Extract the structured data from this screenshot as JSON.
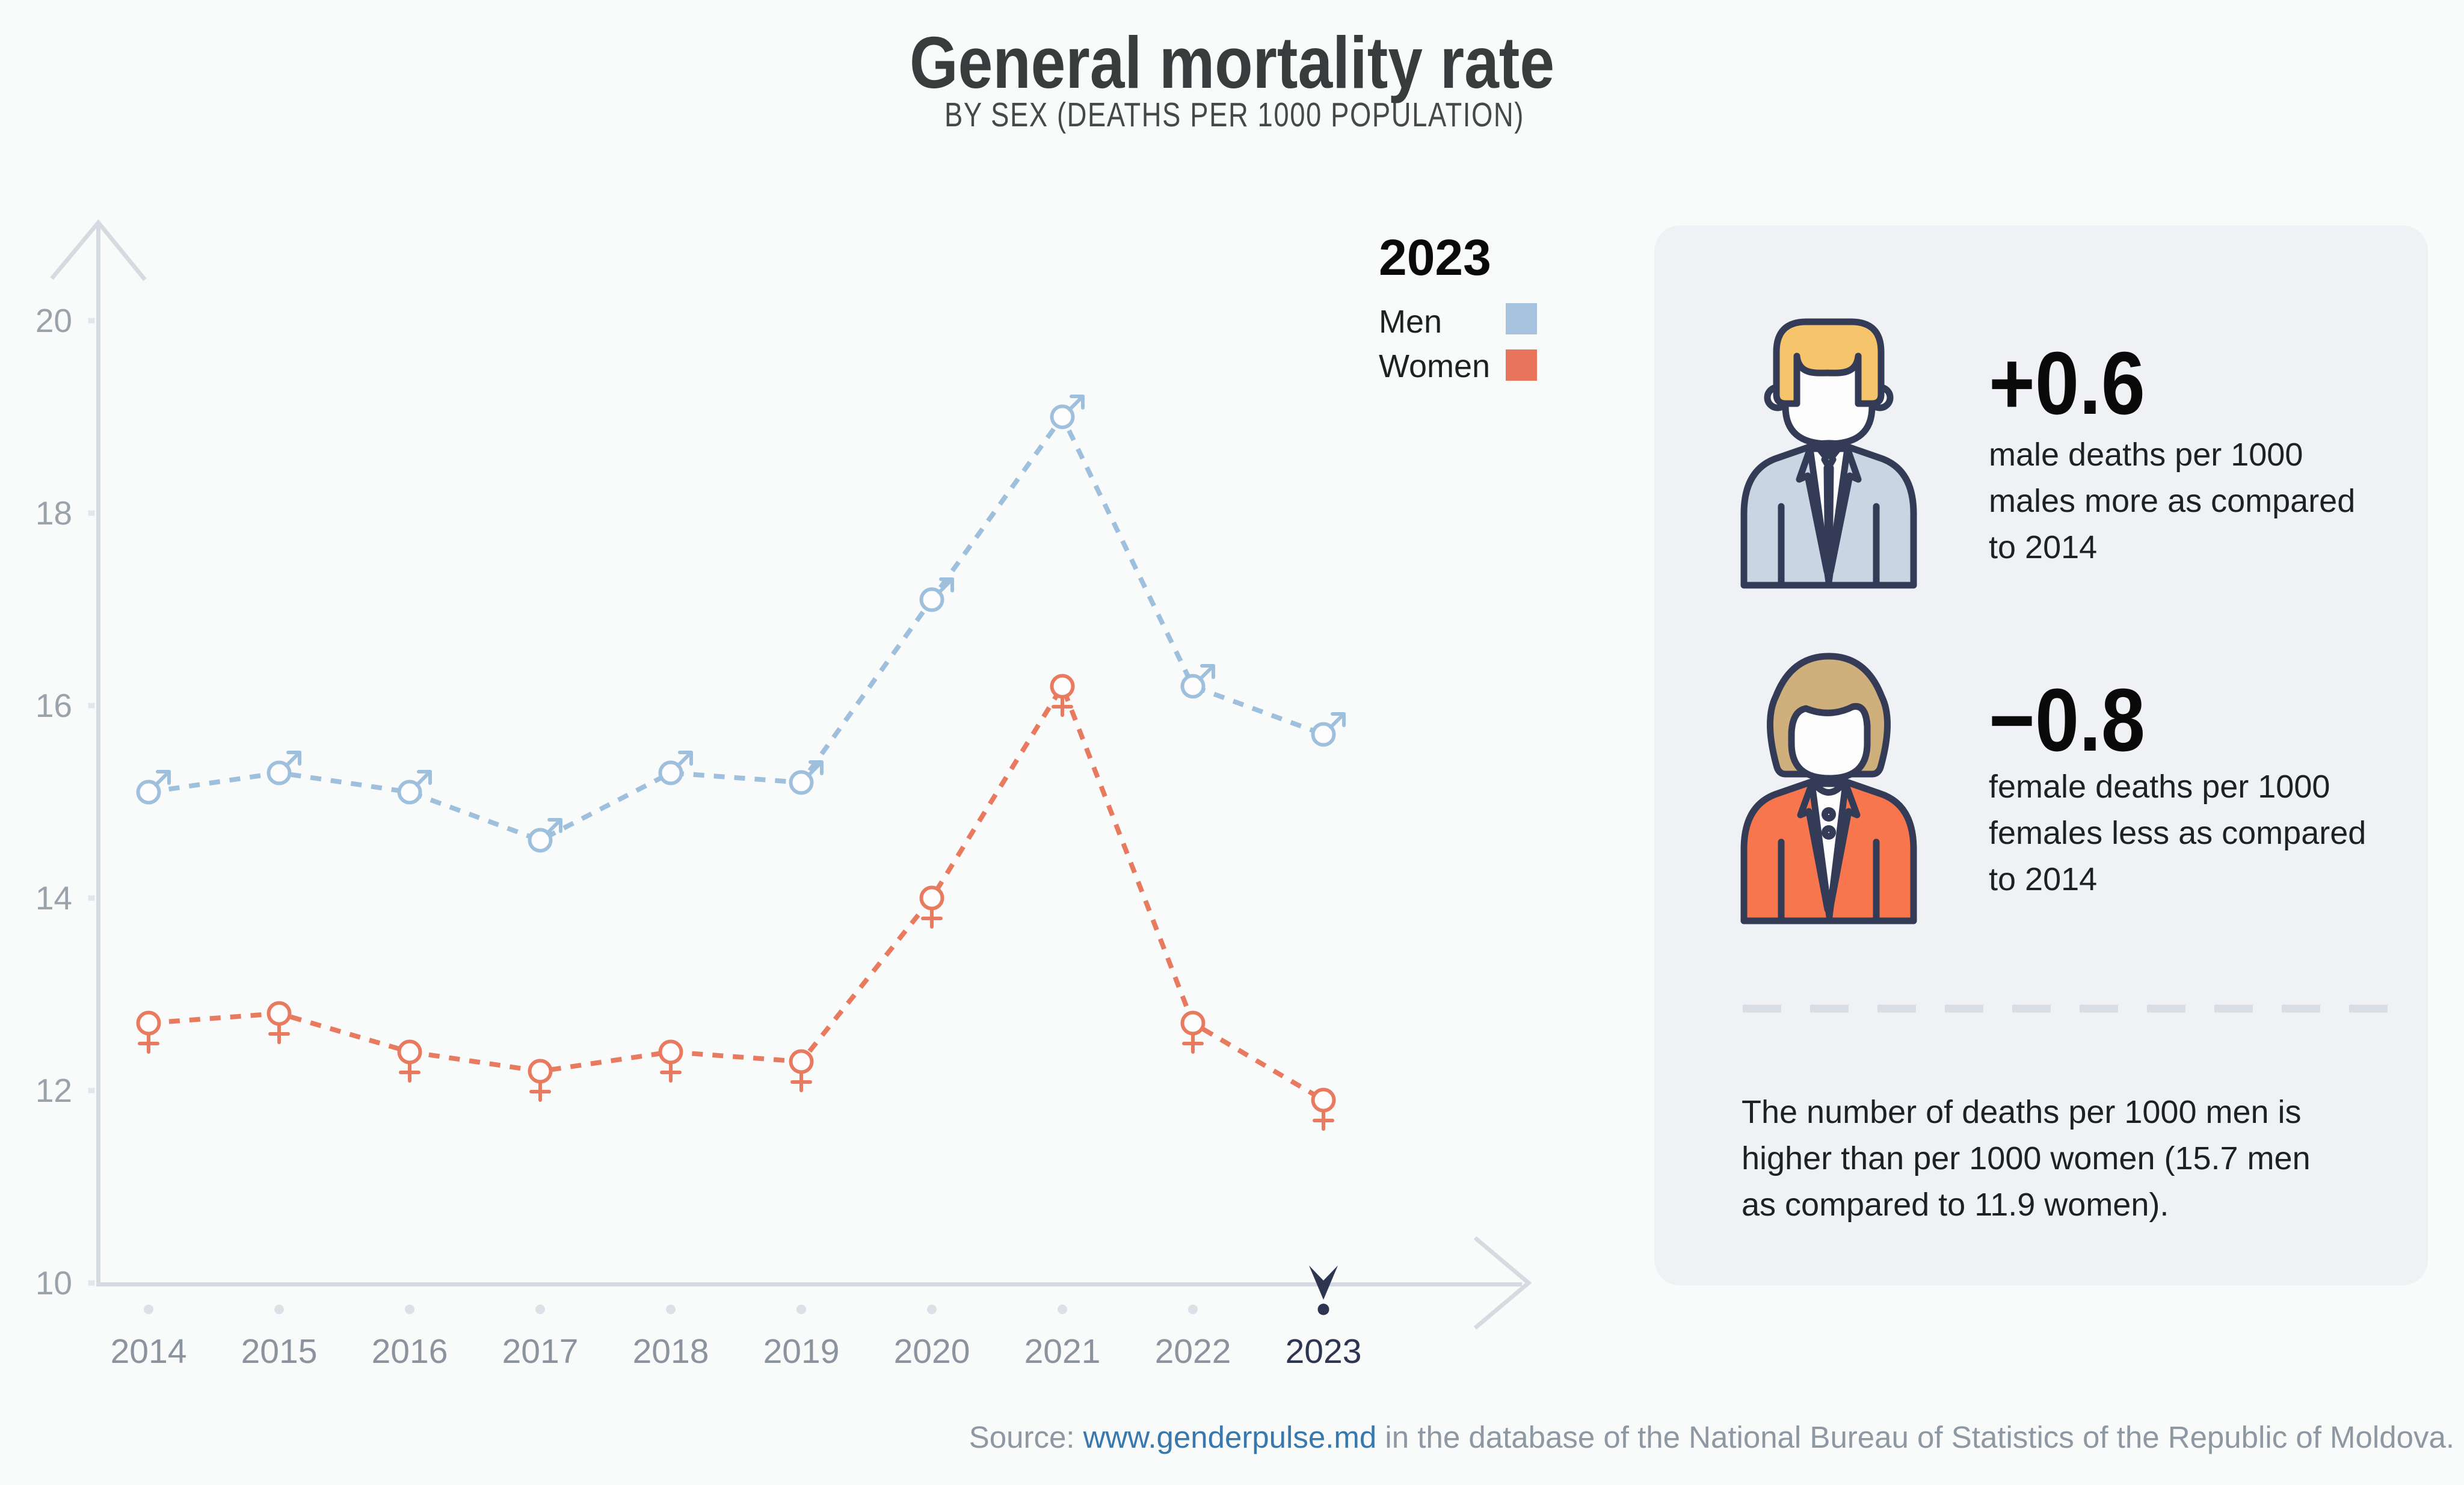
{
  "title": "General mortality rate",
  "subtitle": "BY SEX (DEATHS PER 1000 POPULATION)",
  "chart_data": {
    "type": "line",
    "x": [
      2014,
      2015,
      2016,
      2017,
      2018,
      2019,
      2020,
      2021,
      2022,
      2023
    ],
    "series": [
      {
        "name": "Men",
        "marker": "male",
        "values": [
          15.1,
          15.3,
          15.1,
          14.6,
          15.3,
          15.2,
          17.1,
          19.0,
          16.2,
          15.7
        ]
      },
      {
        "name": "Women",
        "marker": "female",
        "values": [
          12.7,
          12.8,
          12.4,
          12.2,
          12.4,
          12.3,
          14.0,
          16.2,
          12.7,
          11.9
        ]
      }
    ],
    "ylim": [
      10,
      21
    ],
    "yticks": [
      10,
      12,
      14,
      16,
      18,
      20
    ],
    "highlighted_year": 2023,
    "line_style": "dashed",
    "grid": false,
    "legend_position": "top-right-of-chart"
  },
  "legend": {
    "year": "2023",
    "items": [
      {
        "label": "Men",
        "color": "#a6c2de"
      },
      {
        "label": "Women",
        "color": "#e8745c"
      }
    ]
  },
  "panel": {
    "stats": [
      {
        "icon": "man-icon",
        "value": "+0.6",
        "description_lines": [
          "male deaths per 1000",
          "males more as compared",
          "to 2014"
        ]
      },
      {
        "icon": "woman-icon",
        "value": "−0.8",
        "description_lines": [
          "female deaths per 1000",
          "females less as compared",
          "to 2014"
        ]
      }
    ],
    "note_lines": [
      "The number of deaths per 1000 men is",
      "higher than per 1000 women (15.7 men",
      "as compared to 11.9 women)."
    ]
  },
  "source": {
    "prefix": "Source: ",
    "link": "www.genderpulse.md",
    "suffix": " in the database of the National Bureau of Statistics of the Republic of Moldova."
  },
  "colors": {
    "background": "#f9fafa",
    "panel": "#eff1f5",
    "axis": "#d6dbe2",
    "tick": "#e2e6ea",
    "dot": "#dde1e7",
    "navy": "#2d3550",
    "men": "#9fc0dd",
    "women": "#e87a60",
    "men_swatch": "#a6c2de",
    "women_swatch": "#e8745c",
    "title_text": "#3a3b3d",
    "subtitle_text": "#47484a",
    "label_gray": "#8b939e",
    "ylabel_gray": "#9aa2ac",
    "text_dark": "#1f2022",
    "stat_black": "#0a0a0a",
    "link_blue": "#3878ad",
    "source_gray": "#8e98a2",
    "divider": "#d8dde3",
    "icon_outline": "#343b57",
    "man_hair": "#f6c46a",
    "suit": "#c9d5e3",
    "woman_hair": "#cfb07c",
    "jacket": "#f7764e",
    "white": "#fdfdfe"
  }
}
